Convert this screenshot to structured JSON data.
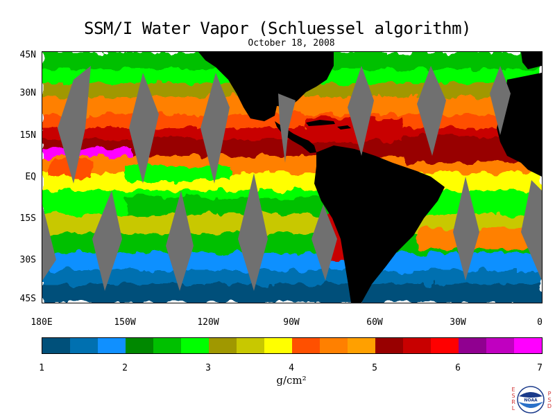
{
  "header": {
    "title": "SSM/I Water Vapor (Schluessel algorithm)",
    "date": "October 18, 2008"
  },
  "map": {
    "latitude_labels": [
      "45N",
      "30N",
      "15N",
      "EQ",
      "15S",
      "30S",
      "45S"
    ],
    "longitude_labels": [
      "180E",
      "150W",
      "120W",
      "90W",
      "60W",
      "30W",
      "0"
    ],
    "land_color": "#000000",
    "no_data_color": "#707070"
  },
  "colorbar": {
    "colors": [
      "#00507a",
      "#0070b0",
      "#1090ff",
      "#008800",
      "#00c000",
      "#00ff00",
      "#a09800",
      "#c8c800",
      "#ffff00",
      "#ff5000",
      "#ff8000",
      "#ffa000",
      "#980000",
      "#c80000",
      "#ff0000",
      "#900090",
      "#c000c0",
      "#ff00ff"
    ],
    "tick_labels": [
      "1",
      "2",
      "3",
      "4",
      "5",
      "6",
      "7"
    ],
    "units": "g/cm²"
  },
  "logo": {
    "left_text": "ESRL",
    "right_text": "PSD",
    "center_text": "NOAA"
  }
}
